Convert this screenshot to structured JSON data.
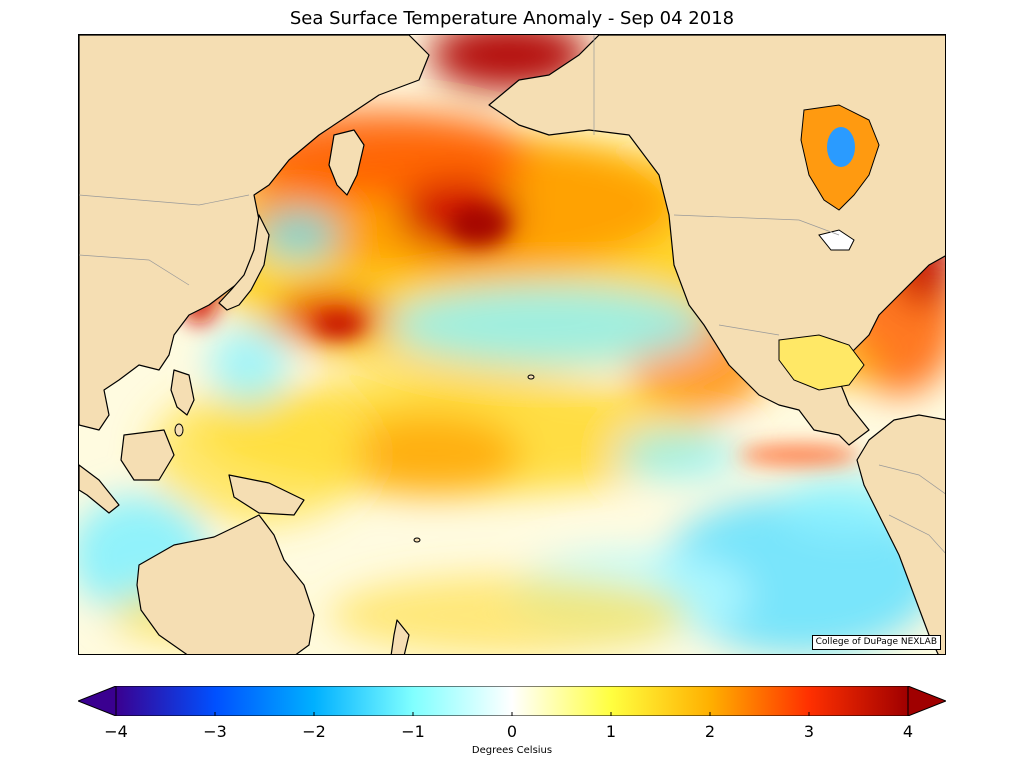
{
  "title": "Sea Surface Temperature Anomaly - Sep 04 2018",
  "credit": "College of DuPage NEXLAB",
  "colorbar": {
    "label": "Degrees Celsius",
    "range": [
      -4,
      4
    ],
    "ticks": [
      "−4",
      "−3",
      "−2",
      "−1",
      "0",
      "1",
      "2",
      "3",
      "4"
    ],
    "colors": {
      "land": "#f5deb3",
      "coast": "#000000",
      "stops": [
        "#3a0090",
        "#0050ff",
        "#00b0ff",
        "#80ffff",
        "#ffffff",
        "#ffff40",
        "#ffb000",
        "#ff3000",
        "#a00000"
      ]
    }
  }
}
